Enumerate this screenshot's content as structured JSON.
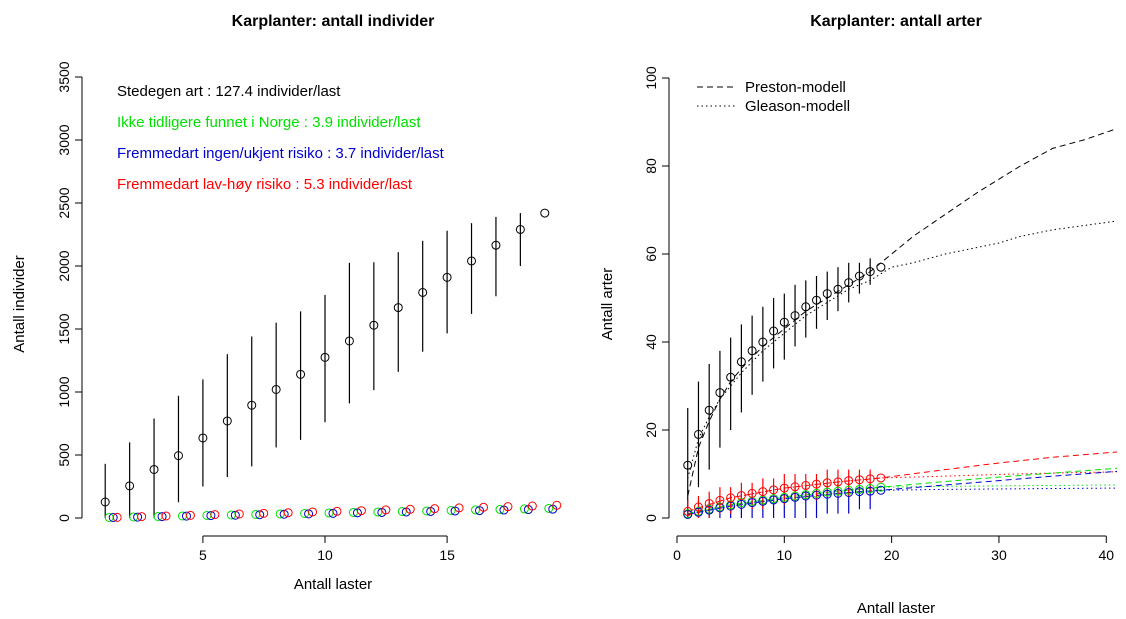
{
  "chart_data": [
    {
      "type": "scatter",
      "title": "Karplanter: antall individer",
      "xlabel": "Antall laster",
      "ylabel": "Antall individer",
      "xlim": [
        0.5,
        19.5
      ],
      "ylim": [
        0,
        3500
      ],
      "xticks": [
        5,
        10,
        15
      ],
      "yticks": [
        0,
        500,
        1000,
        1500,
        2000,
        2500,
        3000,
        3500
      ],
      "grid": false,
      "legend_position": "top-left",
      "legend": [
        {
          "label": "Stedegen art : 127.4 individer/last",
          "color": "#000000"
        },
        {
          "label": "Ikke tidligere funnet i Norge : 3.9 individer/last",
          "color": "#00e000"
        },
        {
          "label": "Fremmedart ingen/ukjent risiko : 3.7 individer/last",
          "color": "#0000cc"
        },
        {
          "label": "Fremmedart lav-høy risiko : 5.3 individer/last",
          "color": "#ff0000"
        }
      ],
      "series": [
        {
          "color": "#000000",
          "x": [
            1,
            2,
            3,
            4,
            5,
            6,
            7,
            8,
            9,
            10,
            11,
            12,
            13,
            14,
            15,
            16,
            17,
            18,
            19
          ],
          "y": [
            127,
            255,
            385,
            495,
            635,
            770,
            895,
            1020,
            1140,
            1275,
            1405,
            1530,
            1670,
            1790,
            1910,
            2040,
            2165,
            2290,
            2420
          ],
          "err_low": [
            0,
            0,
            0,
            125,
            250,
            325,
            410,
            560,
            620,
            760,
            910,
            1015,
            1160,
            1320,
            1465,
            1620,
            1760,
            2000,
            null
          ],
          "err_high": [
            430,
            600,
            790,
            970,
            1100,
            1300,
            1440,
            1550,
            1640,
            1770,
            2025,
            2030,
            2110,
            2200,
            2280,
            2340,
            2390,
            2420,
            null
          ]
        },
        {
          "color": "#00e000",
          "x": [
            1,
            2,
            3,
            4,
            5,
            6,
            7,
            8,
            9,
            10,
            11,
            12,
            13,
            14,
            15,
            16,
            17,
            18,
            19
          ],
          "y": [
            4,
            8,
            12,
            16,
            20,
            24,
            28,
            32,
            36,
            40,
            44,
            48,
            52,
            56,
            60,
            64,
            68,
            72,
            76
          ]
        },
        {
          "color": "#0000cc",
          "x": [
            1,
            2,
            3,
            4,
            5,
            6,
            7,
            8,
            9,
            10,
            11,
            12,
            13,
            14,
            15,
            16,
            17,
            18,
            19
          ],
          "y": [
            4,
            7,
            11,
            15,
            19,
            22,
            26,
            30,
            33,
            37,
            41,
            44,
            48,
            52,
            56,
            59,
            63,
            67,
            70
          ]
        },
        {
          "color": "#ff0000",
          "x": [
            1,
            2,
            3,
            4,
            5,
            6,
            7,
            8,
            9,
            10,
            11,
            12,
            13,
            14,
            15,
            16,
            17,
            18,
            19
          ],
          "y": [
            5,
            11,
            16,
            21,
            27,
            32,
            37,
            42,
            48,
            53,
            58,
            64,
            69,
            74,
            80,
            85,
            90,
            95,
            101
          ]
        }
      ]
    },
    {
      "type": "line",
      "title": "Karplanter: antall arter",
      "xlabel": "Antall laster",
      "ylabel": "Antall arter",
      "xlim": [
        0,
        41
      ],
      "ylim": [
        0,
        100
      ],
      "xticks": [
        0,
        10,
        20,
        30,
        40
      ],
      "yticks": [
        0,
        20,
        40,
        60,
        80,
        100
      ],
      "grid": false,
      "legend_position": "top-left",
      "legend": [
        {
          "label": "Preston-modell",
          "style": "dashed"
        },
        {
          "label": "Gleason-modell",
          "style": "dotted"
        }
      ],
      "observed": [
        {
          "color": "#000000",
          "x": [
            1,
            2,
            3,
            4,
            5,
            6,
            7,
            8,
            9,
            10,
            11,
            12,
            13,
            14,
            15,
            16,
            17,
            18,
            19
          ],
          "y": [
            12,
            19,
            24.5,
            28.5,
            32,
            35.5,
            38,
            40,
            42.5,
            44.5,
            46,
            48,
            49.5,
            51,
            52,
            53.5,
            55,
            56,
            57
          ],
          "err_low": [
            0,
            7,
            11,
            16,
            20,
            24,
            28,
            31,
            34,
            36,
            39,
            41,
            43,
            45,
            47,
            49,
            51,
            53,
            null
          ],
          "err_high": [
            25,
            31,
            35,
            38,
            41,
            44,
            46,
            48,
            50,
            51,
            53,
            54,
            55,
            56,
            57,
            58,
            58,
            59,
            null
          ]
        },
        {
          "color": "#00e000",
          "x": [
            1,
            2,
            3,
            4,
            5,
            6,
            7,
            8,
            9,
            10,
            11,
            12,
            13,
            14,
            15,
            16,
            17,
            18,
            19
          ],
          "y": [
            1,
            1.5,
            2,
            2.5,
            3,
            3.5,
            3.8,
            4.1,
            4.4,
            4.7,
            5,
            5.3,
            5.6,
            5.9,
            6.1,
            6.3,
            6.5,
            6.7,
            7
          ]
        },
        {
          "color": "#0000cc",
          "x": [
            1,
            2,
            3,
            4,
            5,
            6,
            7,
            8,
            9,
            10,
            11,
            12,
            13,
            14,
            15,
            16,
            17,
            18,
            19
          ],
          "y": [
            0.8,
            1.3,
            1.8,
            2.3,
            2.7,
            3.1,
            3.5,
            3.8,
            4.1,
            4.4,
            4.7,
            5,
            5.2,
            5.4,
            5.6,
            5.8,
            6,
            6.1,
            6.3
          ],
          "err_low": [
            0,
            0,
            0,
            0,
            0,
            0,
            0,
            0,
            0,
            0,
            0,
            0,
            0,
            1,
            1,
            1,
            2,
            2,
            null
          ],
          "err_high": [
            3,
            4,
            4,
            5,
            5,
            6,
            6,
            6,
            7,
            7,
            7,
            7,
            7,
            7,
            8,
            8,
            8,
            8,
            null
          ]
        },
        {
          "color": "#ff0000",
          "x": [
            1,
            2,
            3,
            4,
            5,
            6,
            7,
            8,
            9,
            10,
            11,
            12,
            13,
            14,
            15,
            16,
            17,
            18,
            19
          ],
          "y": [
            1.5,
            2.5,
            3.3,
            4,
            4.6,
            5.1,
            5.6,
            6,
            6.4,
            6.8,
            7.1,
            7.4,
            7.7,
            8,
            8.2,
            8.5,
            8.7,
            8.9,
            9.1
          ],
          "err_low": [
            0,
            0,
            0,
            1,
            1,
            2,
            2,
            2,
            3,
            3,
            4,
            4,
            4,
            5,
            5,
            5,
            6,
            6,
            null
          ],
          "err_high": [
            4,
            5,
            6,
            7,
            7,
            8,
            8,
            9,
            9,
            10,
            10,
            10,
            10,
            11,
            11,
            11,
            11,
            11,
            null
          ]
        }
      ],
      "models": [
        {
          "model": "Preston",
          "color": "#000000",
          "x": [
            1,
            2,
            3,
            4,
            5,
            6,
            8,
            10,
            12,
            14,
            16,
            18,
            20,
            22,
            25,
            28,
            30,
            32,
            35,
            38,
            41
          ],
          "y": [
            5,
            16,
            22,
            27,
            31,
            34,
            39,
            43,
            47,
            50,
            53,
            56,
            60,
            64,
            69,
            74,
            77,
            80,
            84,
            86,
            88.5
          ]
        },
        {
          "model": "Gleason",
          "color": "#000000",
          "x": [
            1,
            2,
            3,
            4,
            5,
            6,
            8,
            10,
            12,
            14,
            16,
            18,
            20,
            22,
            25,
            28,
            30,
            32,
            35,
            38,
            41
          ],
          "y": [
            9,
            18,
            23,
            27,
            30,
            33,
            38,
            42,
            46,
            49,
            52,
            54,
            57,
            58,
            60,
            61.5,
            62.5,
            64,
            65.5,
            66.5,
            67.5
          ]
        },
        {
          "model": "Preston",
          "color": "#ff0000",
          "x": [
            1,
            5,
            10,
            15,
            19,
            25,
            30,
            35,
            41
          ],
          "y": [
            1.5,
            4.6,
            6.8,
            8.2,
            9.1,
            11,
            12.5,
            13.8,
            15
          ]
        },
        {
          "model": "Gleason",
          "color": "#ff0000",
          "x": [
            1,
            5,
            10,
            15,
            19,
            25,
            30,
            35,
            41
          ],
          "y": [
            1.5,
            4.6,
            6.8,
            8.2,
            9.1,
            9.5,
            9.9,
            10.2,
            10.5
          ]
        },
        {
          "model": "Preston",
          "color": "#00e000",
          "x": [
            1,
            5,
            10,
            15,
            19,
            25,
            30,
            35,
            41
          ],
          "y": [
            1,
            3,
            4.7,
            6.1,
            7,
            8.3,
            9.3,
            10.2,
            11.3
          ]
        },
        {
          "model": "Gleason",
          "color": "#00e000",
          "x": [
            1,
            5,
            10,
            15,
            19,
            25,
            30,
            35,
            41
          ],
          "y": [
            1,
            3,
            4.7,
            6.1,
            7,
            7.2,
            7.3,
            7.4,
            7.5
          ]
        },
        {
          "model": "Preston",
          "color": "#0000cc",
          "x": [
            1,
            5,
            10,
            15,
            19,
            25,
            30,
            35,
            41
          ],
          "y": [
            0.8,
            2.7,
            4.4,
            5.6,
            6.3,
            7.5,
            8.5,
            9.5,
            10.6
          ]
        },
        {
          "model": "Gleason",
          "color": "#0000cc",
          "x": [
            1,
            5,
            10,
            15,
            19,
            25,
            30,
            35,
            41
          ],
          "y": [
            0.8,
            2.7,
            4.4,
            5.6,
            6.3,
            6.5,
            6.6,
            6.7,
            6.8
          ]
        }
      ]
    }
  ]
}
